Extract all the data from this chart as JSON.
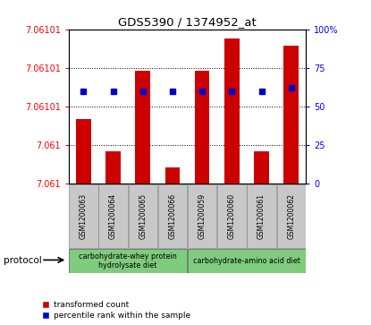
{
  "title": "GDS5390 / 1374952_at",
  "samples": [
    "GSM1200063",
    "GSM1200064",
    "GSM1200065",
    "GSM1200066",
    "GSM1200059",
    "GSM1200060",
    "GSM1200061",
    "GSM1200062"
  ],
  "transformed_counts": [
    7.06099,
    7.06098,
    7.061005,
    7.060975,
    7.061005,
    7.061015,
    7.06098,
    7.061013
  ],
  "percentile_ranks": [
    60,
    60,
    60,
    60,
    60,
    60,
    60,
    62
  ],
  "ylim_left": [
    7.06097,
    7.061018
  ],
  "ylim_right": [
    0,
    100
  ],
  "bar_color": "#cc0000",
  "dot_color": "#0000cc",
  "bar_bottom": 7.06097,
  "ytick_left_labels": [
    "7.061",
    "7.061",
    "7.06101",
    "7.06101",
    "7.06101"
  ],
  "ytick_right_labels": [
    "0",
    "25",
    "50",
    "75",
    "100%"
  ],
  "ytick_right_vals": [
    0,
    25,
    50,
    75,
    100
  ],
  "protocol_groups": [
    {
      "label": "carbohydrate-whey protein\nhydrolysate diet",
      "start": 0,
      "end": 4,
      "color": "#7fcc7f"
    },
    {
      "label": "carbohydrate-amino acid diet",
      "start": 4,
      "end": 8,
      "color": "#7fcc7f"
    }
  ],
  "legend_bar_label": "transformed count",
  "legend_dot_label": "percentile rank within the sample",
  "protocol_label": "protocol",
  "sample_box_color": "#c8c8c8",
  "plot_bg_color": "#ffffff"
}
